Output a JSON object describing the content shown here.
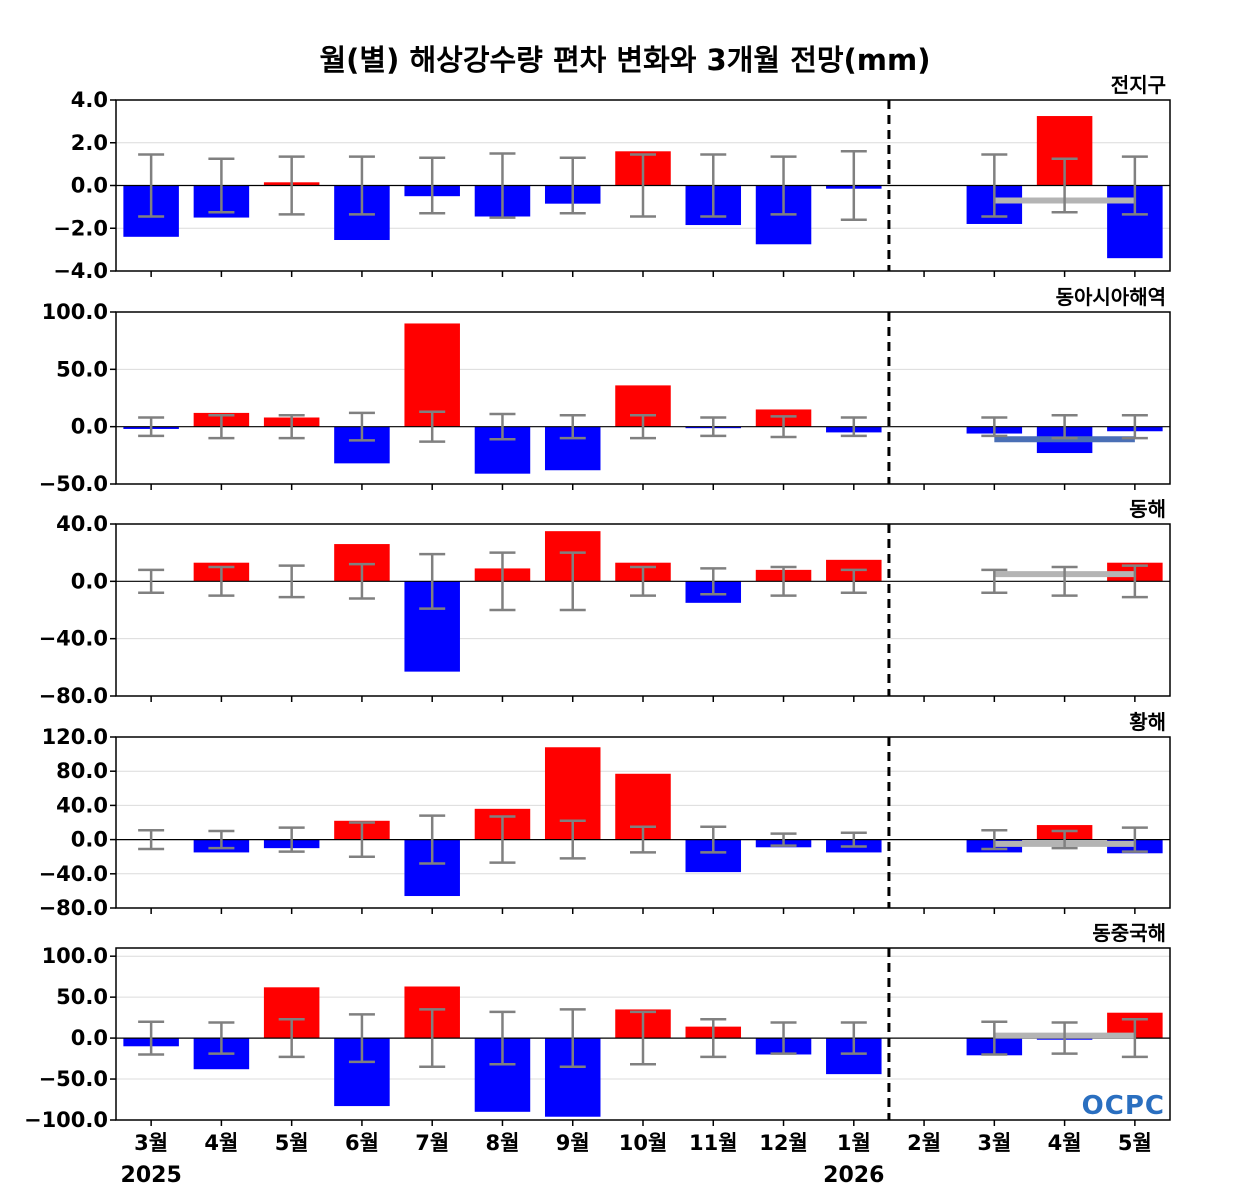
{
  "chart_data": {
    "type": "bar",
    "title": "월(별) 해상강수량 편차 변화와 3개월 전망(mm)",
    "categories": [
      "3월",
      "4월",
      "5월",
      "6월",
      "7월",
      "8월",
      "9월",
      "10월",
      "11월",
      "12월",
      "1월",
      "2월",
      "3월",
      "4월",
      "5월"
    ],
    "year_labels": [
      {
        "label": "2025",
        "category_index": 0
      },
      {
        "label": "2026",
        "category_index": 10
      }
    ],
    "forecast_divider_after_index": 10.5,
    "colors": {
      "positive": "#ff0000",
      "negative": "#0000ff",
      "error_bar": "#808080",
      "forecast_range_gray": "#b4b4b4",
      "forecast_range_blue": "#4a6fb5",
      "grid": "#dcdcdc",
      "logo": "#2a6fc0"
    },
    "panels": [
      {
        "name": "전지구",
        "ylim": [
          -4.0,
          4.0
        ],
        "yticks": [
          4.0,
          2.0,
          0.0,
          -2.0,
          -4.0
        ],
        "ytick_labels": [
          "4.0",
          "2.0",
          "0.0",
          "−2.0",
          "−4.0"
        ],
        "values": [
          -2.4,
          -1.5,
          0.15,
          -2.55,
          -0.5,
          -1.45,
          -0.85,
          1.6,
          -1.85,
          -2.75,
          -0.15,
          0,
          -1.8,
          3.25,
          -3.4
        ],
        "error": [
          1.45,
          1.25,
          1.35,
          1.35,
          1.3,
          1.5,
          1.3,
          1.45,
          1.45,
          1.35,
          1.6,
          0,
          1.45,
          1.25,
          1.35
        ],
        "forecast_range": {
          "value": -0.7,
          "from_index": 12,
          "to_index": 14,
          "color": "gray"
        }
      },
      {
        "name": "동아시아해역",
        "ylim": [
          -50.0,
          100.0
        ],
        "yticks": [
          100.0,
          50.0,
          0.0,
          -50.0
        ],
        "ytick_labels": [
          "100.0",
          "50.0",
          "0.0",
          "−50.0"
        ],
        "values": [
          -2,
          12,
          8,
          -32,
          90,
          -41,
          -38,
          36,
          -1,
          15,
          -5,
          0,
          -6,
          -23,
          -4
        ],
        "error": [
          8,
          10,
          10,
          12,
          13,
          11,
          10,
          10,
          8,
          9,
          8,
          0,
          8,
          10,
          10
        ],
        "forecast_range": {
          "value": -11,
          "from_index": 12,
          "to_index": 14,
          "color": "blue"
        }
      },
      {
        "name": "동해",
        "ylim": [
          -80.0,
          40.0
        ],
        "yticks": [
          40.0,
          0.0,
          -40.0,
          -80.0
        ],
        "ytick_labels": [
          "40.0",
          "0.0",
          "−40.0",
          "−80.0"
        ],
        "values": [
          0,
          13,
          0,
          26,
          -63,
          9,
          35,
          13,
          -15,
          8,
          15,
          0,
          0,
          0,
          13
        ],
        "error": [
          8,
          10,
          11,
          12,
          19,
          20,
          20,
          10,
          9,
          10,
          8,
          0,
          8,
          10,
          11
        ],
        "forecast_range": {
          "value": 5,
          "from_index": 12,
          "to_index": 14,
          "color": "gray"
        }
      },
      {
        "name": "황해",
        "ylim": [
          -80.0,
          120.0
        ],
        "yticks": [
          120.0,
          80.0,
          40.0,
          0.0,
          -40.0,
          -80.0
        ],
        "ytick_labels": [
          "120.0",
          "80.0",
          "40.0",
          "0.0",
          "−40.0",
          "−80.0"
        ],
        "values": [
          0,
          -15,
          -10,
          22,
          -66,
          36,
          108,
          77,
          -38,
          -9,
          -15,
          0,
          -15,
          17,
          -16
        ],
        "error": [
          11,
          10,
          14,
          20,
          28,
          27,
          22,
          15,
          15,
          7,
          8,
          0,
          11,
          10,
          14
        ],
        "forecast_range": {
          "value": -5,
          "from_index": 12,
          "to_index": 14,
          "color": "gray"
        }
      },
      {
        "name": "동중국해",
        "ylim": [
          -100.0,
          110.0
        ],
        "yticks": [
          100.0,
          50.0,
          0.0,
          -50.0,
          -100.0
        ],
        "ytick_labels": [
          "100.0",
          "50.0",
          "0.0",
          "−50.0",
          "−100.0"
        ],
        "values": [
          -10,
          -38,
          62,
          -83,
          63,
          -90,
          -96,
          35,
          14,
          -20,
          -44,
          0,
          -21,
          -2,
          31
        ],
        "error": [
          20,
          19,
          23,
          29,
          35,
          32,
          35,
          32,
          23,
          19,
          19,
          0,
          20,
          19,
          23
        ],
        "forecast_range": {
          "value": 3,
          "from_index": 12,
          "to_index": 14,
          "color": "gray"
        }
      }
    ],
    "grid": true,
    "logo_text": "OCPC"
  }
}
